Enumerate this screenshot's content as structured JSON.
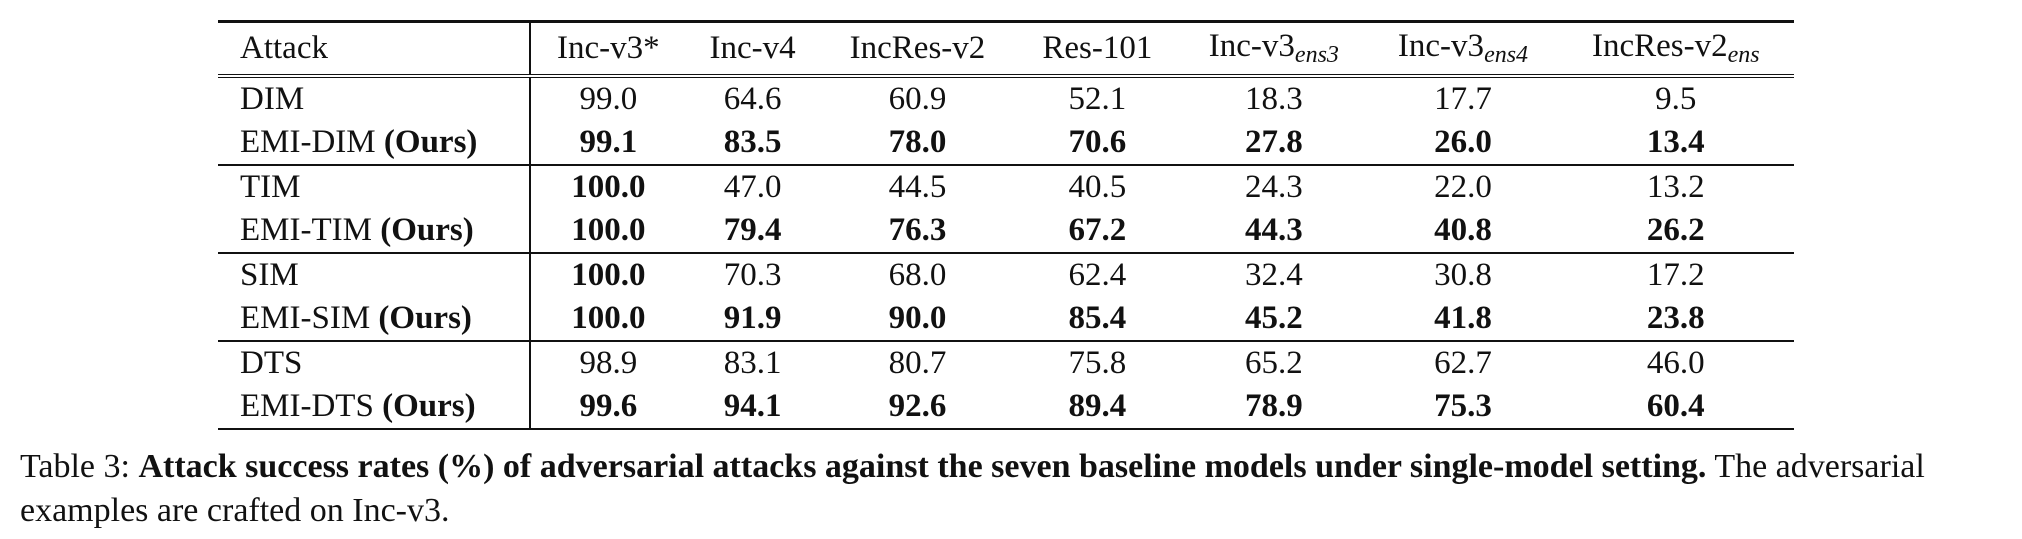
{
  "table": {
    "headers": [
      {
        "base": "Attack",
        "sub": ""
      },
      {
        "base": "Inc-v3*",
        "sub": ""
      },
      {
        "base": "Inc-v4",
        "sub": ""
      },
      {
        "base": "IncRes-v2",
        "sub": ""
      },
      {
        "base": "Res-101",
        "sub": ""
      },
      {
        "base": "Inc-v3",
        "sub": "ens3"
      },
      {
        "base": "Inc-v3",
        "sub": "ens4"
      },
      {
        "base": "IncRes-v2",
        "sub": "ens"
      }
    ],
    "groups": [
      {
        "rows": [
          {
            "name": "DIM",
            "suffix": "",
            "values": [
              "99.0",
              "64.6",
              "60.9",
              "52.1",
              "18.3",
              "17.7",
              "9.5"
            ],
            "bold": [
              false,
              false,
              false,
              false,
              false,
              false,
              false
            ]
          },
          {
            "name": "EMI-DIM ",
            "suffix": "(Ours)",
            "values": [
              "99.1",
              "83.5",
              "78.0",
              "70.6",
              "27.8",
              "26.0",
              "13.4"
            ],
            "bold": [
              true,
              true,
              true,
              true,
              true,
              true,
              true
            ]
          }
        ]
      },
      {
        "rows": [
          {
            "name": "TIM",
            "suffix": "",
            "values": [
              "100.0",
              "47.0",
              "44.5",
              "40.5",
              "24.3",
              "22.0",
              "13.2"
            ],
            "bold": [
              true,
              false,
              false,
              false,
              false,
              false,
              false
            ]
          },
          {
            "name": "EMI-TIM ",
            "suffix": "(Ours)",
            "values": [
              "100.0",
              "79.4",
              "76.3",
              "67.2",
              "44.3",
              "40.8",
              "26.2"
            ],
            "bold": [
              true,
              true,
              true,
              true,
              true,
              true,
              true
            ]
          }
        ]
      },
      {
        "rows": [
          {
            "name": "SIM",
            "suffix": "",
            "values": [
              "100.0",
              "70.3",
              "68.0",
              "62.4",
              "32.4",
              "30.8",
              "17.2"
            ],
            "bold": [
              true,
              false,
              false,
              false,
              false,
              false,
              false
            ]
          },
          {
            "name": "EMI-SIM ",
            "suffix": "(Ours)",
            "values": [
              "100.0",
              "91.9",
              "90.0",
              "85.4",
              "45.2",
              "41.8",
              "23.8"
            ],
            "bold": [
              true,
              true,
              true,
              true,
              true,
              true,
              true
            ]
          }
        ]
      },
      {
        "rows": [
          {
            "name": "DTS",
            "suffix": "",
            "values": [
              "98.9",
              "83.1",
              "80.7",
              "75.8",
              "65.2",
              "62.7",
              "46.0"
            ],
            "bold": [
              false,
              false,
              false,
              false,
              false,
              false,
              false
            ]
          },
          {
            "name": "EMI-DTS ",
            "suffix": "(Ours)",
            "values": [
              "99.6",
              "94.1",
              "92.6",
              "89.4",
              "78.9",
              "75.3",
              "60.4"
            ],
            "bold": [
              true,
              true,
              true,
              true,
              true,
              true,
              true
            ]
          }
        ]
      }
    ]
  },
  "caption": {
    "label": "Table 3: ",
    "bold_text": "Attack success rates (%) of adversarial attacks against the seven baseline models under single-model setting.",
    "normal_text": " The adversarial examples are crafted on Inc-v3."
  }
}
